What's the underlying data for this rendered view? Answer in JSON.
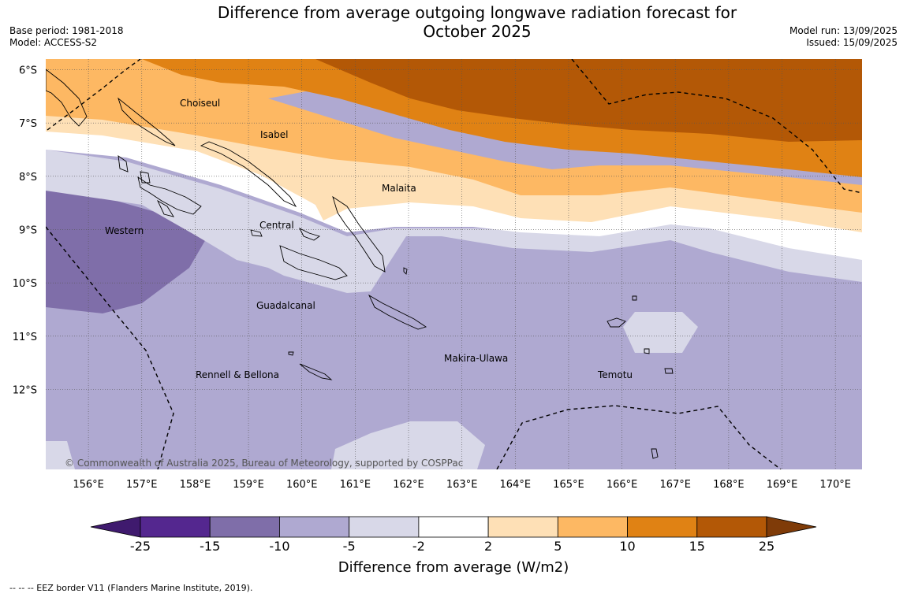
{
  "title_line1": "Difference from average outgoing longwave radiation forecast for",
  "title_line2": "October 2025",
  "meta": {
    "base_period": "Base period: 1981-2018",
    "model": "Model: ACCESS-S2",
    "model_run": "Model run: 13/09/2025",
    "issued": "Issued: 15/09/2025"
  },
  "map": {
    "lon_range": [
      155.2,
      170.5
    ],
    "lat_range": [
      -13.5,
      -5.8
    ],
    "lon_ticks": [
      "156°E",
      "157°E",
      "158°E",
      "159°E",
      "160°E",
      "161°E",
      "162°E",
      "163°E",
      "164°E",
      "165°E",
      "166°E",
      "167°E",
      "168°E",
      "169°E",
      "170°E"
    ],
    "lat_ticks": [
      "6°S",
      "7°S",
      "8°S",
      "9°S",
      "10°S",
      "11°S",
      "12°S"
    ],
    "copyright": "© Commonwealth of Australia 2025, Bureau of Meteorology, supported by COSPPac",
    "provinces": [
      "Choiseul",
      "Isabel",
      "Malaita",
      "Central",
      "Western",
      "Guadalcanal",
      "Makira-Ulawa",
      "Rennell & Bellona",
      "Temotu"
    ]
  },
  "colorbar": {
    "colors": [
      "#3f1a6e",
      "#54278f",
      "#7f6ea9",
      "#afa9d1",
      "#d8d8e8",
      "#ffffff",
      "#fee0b6",
      "#fdb863",
      "#e08214",
      "#b35806",
      "#7f3b08"
    ],
    "labels": [
      "-25",
      "-15",
      "-10",
      "-5",
      "-2",
      "2",
      "5",
      "10",
      "15",
      "25"
    ],
    "title": "Difference from average (W/m2)"
  },
  "footnote": "--  --  -- EEZ border V11 (Flanders Marine Institute, 2019)."
}
